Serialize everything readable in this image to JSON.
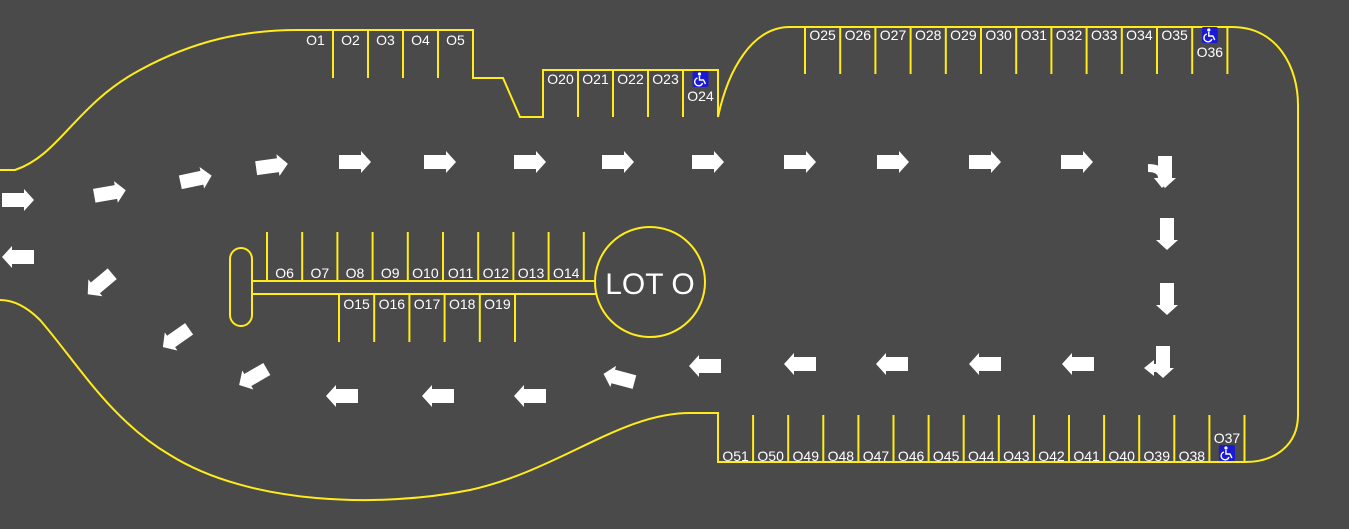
{
  "lot": {
    "title": "LOT O",
    "colors": {
      "asphalt": "#4a4a4a",
      "lines": "#ffec1a",
      "arrows": "#ffffff",
      "accessible": "#1a1ad6"
    },
    "icons": {
      "accessible": "wheelchair-icon",
      "arrow": "direction-arrow-icon"
    }
  },
  "rows": {
    "top_left": [
      "O1",
      "O2",
      "O3",
      "O4",
      "O5"
    ],
    "top_mid": [
      "O20",
      "O21",
      "O22",
      "O23",
      "O24"
    ],
    "top_right": [
      "O25",
      "O26",
      "O27",
      "O28",
      "O29",
      "O30",
      "O31",
      "O32",
      "O33",
      "O34",
      "O35",
      "O36"
    ],
    "island_upper": [
      "O6",
      "O7",
      "O8",
      "O9",
      "O10",
      "O11",
      "O12",
      "O13",
      "O14"
    ],
    "island_lower": [
      "O15",
      "O16",
      "O17",
      "O18",
      "O19"
    ],
    "bottom": [
      "O51",
      "O50",
      "O49",
      "O48",
      "O47",
      "O46",
      "O45",
      "O44",
      "O43",
      "O42",
      "O41",
      "O40",
      "O39",
      "O38",
      "O37"
    ]
  },
  "accessible_stalls": [
    "O24",
    "O36",
    "O37"
  ]
}
